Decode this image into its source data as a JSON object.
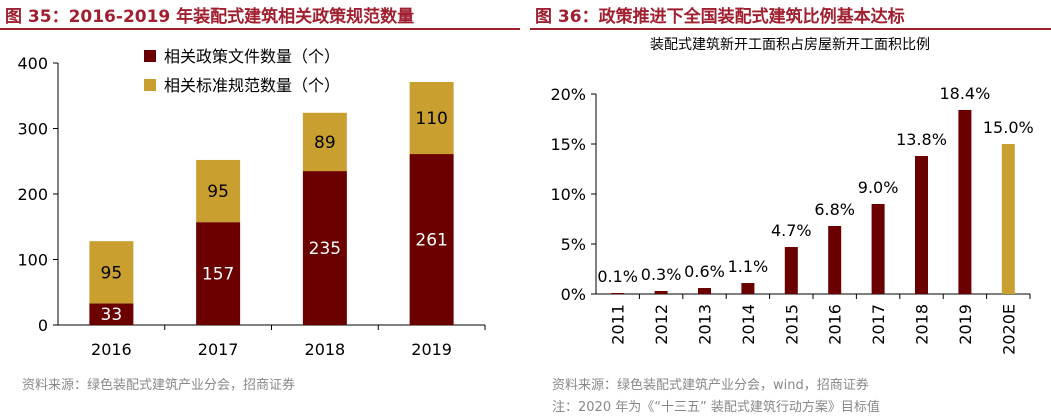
{
  "colors": {
    "title_red": "#a02030",
    "dark_red": "#6b0000",
    "gold": "#c9a030",
    "source_gray": "#888888"
  },
  "left": {
    "title": "图 35：2016-2019 年装配式建筑相关政策规范数量",
    "source": "资料来源：绿色装配式建筑产业分会，招商证券"
  },
  "right": {
    "title": "图 36：政策推进下全国装配式建筑比例基本达标",
    "source": "资料来源：绿色装配式建筑产业分会，wind，招商证券",
    "note": "注：2020 年为《“十三五” 装配式建筑行动方案》目标值"
  },
  "chart_data": [
    {
      "type": "bar",
      "stacked": true,
      "title": "",
      "categories": [
        "2016",
        "2017",
        "2018",
        "2019"
      ],
      "series": [
        {
          "name": "相关政策文件数量（个）",
          "values": [
            33,
            157,
            235,
            261
          ],
          "color": "#6b0000"
        },
        {
          "name": "相关标准规范数量（个）",
          "values": [
            95,
            95,
            89,
            110
          ],
          "color": "#c9a030"
        }
      ],
      "ylim": [
        0,
        400
      ],
      "yticks": [
        "0",
        "100",
        "200",
        "300",
        "400"
      ],
      "legend": "top-left",
      "xlabel": "",
      "ylabel": ""
    },
    {
      "type": "bar",
      "title": "装配式建筑新开工面积占房屋新开工面积比例",
      "categories": [
        "2011",
        "2012",
        "2013",
        "2014",
        "2015",
        "2016",
        "2017",
        "2018",
        "2019",
        "2020E"
      ],
      "values": [
        0.1,
        0.3,
        0.6,
        1.1,
        4.7,
        6.8,
        9.0,
        13.8,
        18.4,
        15.0
      ],
      "labels": [
        "0.1%",
        "0.3%",
        "0.6%",
        "1.1%",
        "4.7%",
        "6.8%",
        "9.0%",
        "13.8%",
        "18.4%",
        "15.0%"
      ],
      "colors": [
        "#6b0000",
        "#6b0000",
        "#6b0000",
        "#6b0000",
        "#6b0000",
        "#6b0000",
        "#6b0000",
        "#6b0000",
        "#6b0000",
        "#c9a030"
      ],
      "ylim": [
        0,
        20
      ],
      "yticks": [
        "0%",
        "5%",
        "10%",
        "15%",
        "20%"
      ],
      "xlabel": "",
      "ylabel": ""
    }
  ]
}
